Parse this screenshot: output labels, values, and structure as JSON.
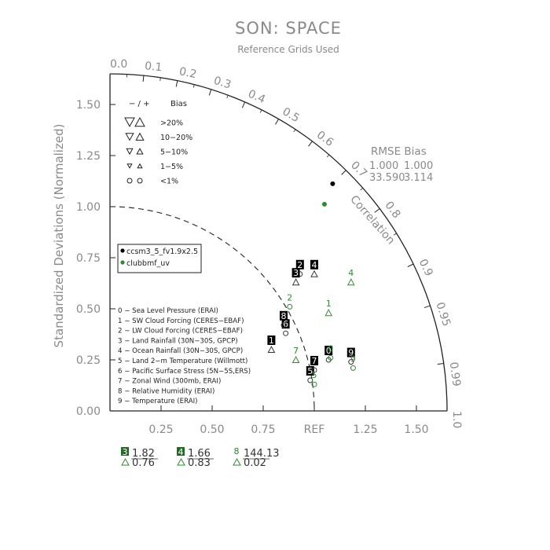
{
  "chart_data": {
    "type": "scatter",
    "subtype": "taylor-diagram",
    "title": "SON: SPACE",
    "subtitle": "Reference Grids Used",
    "ylabel": "Standardized Deviations (Normalized)",
    "correlation_label": "Correlation",
    "x_ticks": [
      "0.25",
      "0.50",
      "0.75",
      "REF",
      "1.25",
      "1.50"
    ],
    "y_ticks": [
      "0.00",
      "0.25",
      "0.50",
      "0.75",
      "1.00",
      "1.25",
      "1.50"
    ],
    "corr_ticks": [
      "0.0",
      "0.1",
      "0.2",
      "0.3",
      "0.4",
      "0.5",
      "0.6",
      "0.7",
      "0.8",
      "0.9",
      "0.95",
      "0.99",
      "1.0"
    ],
    "xlim": [
      0,
      1.65
    ],
    "ylim": [
      0,
      1.65
    ],
    "bias_legend": {
      "header_sign": "− / +",
      "header_label": "Bias",
      "rows": [
        ">20%",
        "10−20%",
        "5−10%",
        "1−5%",
        "<1%"
      ]
    },
    "rmse_bias_box": {
      "header": "RMSE  Bias",
      "rows": [
        {
          "rmse": "1.000",
          "bias": "1.000"
        },
        {
          "rmse": "33.590",
          "bias": "3.114"
        }
      ]
    },
    "series": [
      {
        "name": "ccsm3_5_fv1.9x2.5",
        "color": "#000000",
        "points": [
          {
            "label": "0",
            "marker": "circle",
            "x": 1.07,
            "y": 0.25
          },
          {
            "label": "1",
            "marker": "triangle-up",
            "x": 0.79,
            "y": 0.3
          },
          {
            "label": "2",
            "marker": "circle",
            "x": 0.93,
            "y": 0.67
          },
          {
            "label": "3",
            "marker": "triangle-up",
            "x": 0.91,
            "y": 0.63
          },
          {
            "label": "4",
            "marker": "triangle-up",
            "x": 1.0,
            "y": 0.67
          },
          {
            "label": "5",
            "marker": "circle",
            "x": 0.98,
            "y": 0.15
          },
          {
            "label": "6",
            "marker": "circle",
            "x": 0.86,
            "y": 0.38
          },
          {
            "label": "7",
            "marker": "circle",
            "x": 1.0,
            "y": 0.2
          },
          {
            "label": "8",
            "marker": "circle",
            "x": 0.85,
            "y": 0.42
          },
          {
            "label": "9",
            "marker": "circle",
            "x": 1.18,
            "y": 0.24
          }
        ],
        "ref_point": {
          "corr": 0.7,
          "std": 1.73
        }
      },
      {
        "name": "clubbmf_uv",
        "color": "#2e8b2e",
        "points": [
          {
            "label": "0",
            "marker": "circle",
            "x": 1.08,
            "y": 0.26
          },
          {
            "label": "1",
            "marker": "triangle-up",
            "x": 1.07,
            "y": 0.48
          },
          {
            "label": "2",
            "marker": "circle",
            "x": 0.88,
            "y": 0.51
          },
          {
            "label": "4",
            "marker": "triangle-up",
            "x": 1.18,
            "y": 0.63
          },
          {
            "label": "5",
            "marker": "circle",
            "x": 1.0,
            "y": 0.13
          },
          {
            "label": "7",
            "marker": "triangle-up",
            "x": 0.91,
            "y": 0.25
          },
          {
            "label": "9",
            "marker": "circle",
            "x": 1.19,
            "y": 0.21
          }
        ],
        "ref_point": {
          "corr": 0.72,
          "std": 1.62
        }
      }
    ],
    "case_list": [
      "0 − Sea Level Pressure (ERAI)",
      "1 − SW Cloud Forcing (CERES−EBAF)",
      "2 − LW Cloud Forcing (CERES−EBAF)",
      "3 − Land Rainfall (30N−30S, GPCP)",
      "4 − Ocean Rainfall (30N−30S, GPCP)",
      "5 − Land 2−m Temperature (Willmott)",
      "6 − Pacific Surface Stress (5N−5S,ERS)",
      "7 − Zonal Wind (300mb, ERAI)",
      "8 − Relative Humidity (ERAI)",
      "9 − Temperature (ERAI)"
    ],
    "outliers": [
      {
        "label": "3",
        "top": "1.82",
        "bottom": "0.76"
      },
      {
        "label": "4",
        "top": "1.66",
        "bottom": "0.83"
      },
      {
        "label": "8",
        "top": "144.13",
        "bottom": "0.02"
      }
    ]
  }
}
